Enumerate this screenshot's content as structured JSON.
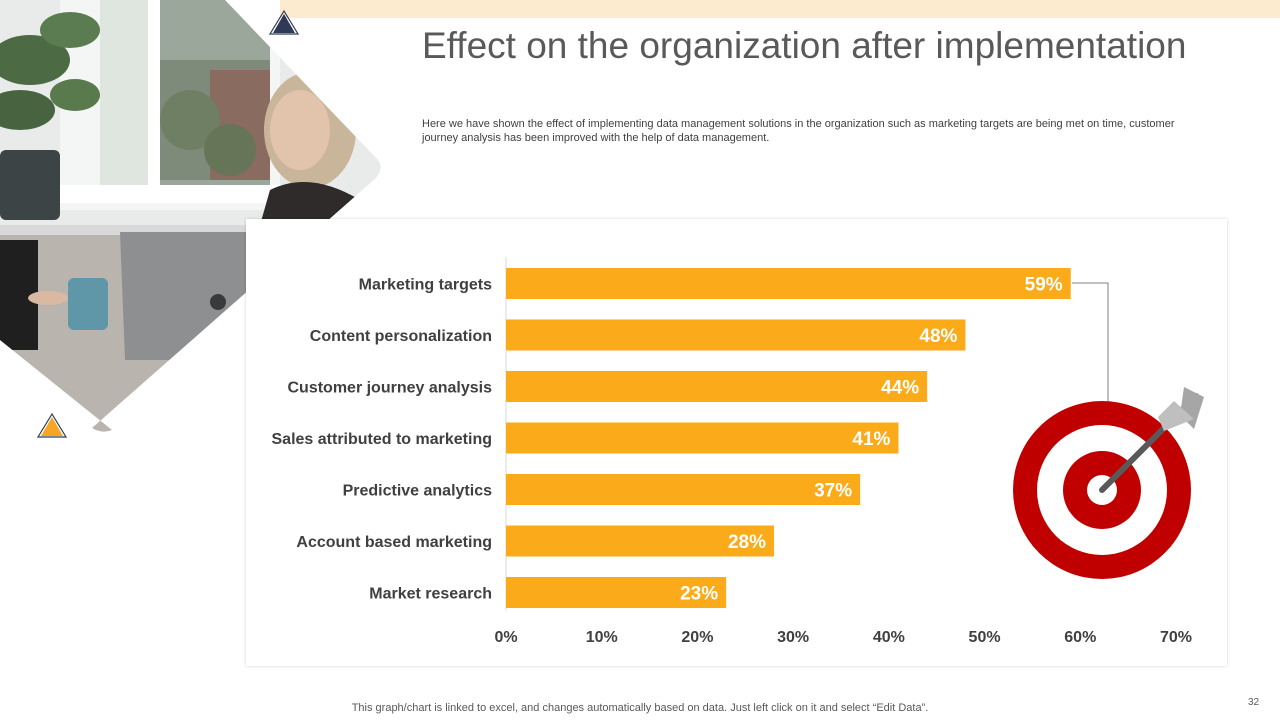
{
  "slide": {
    "title": "Effect on the organization after implementation",
    "subtitle": "Here we have shown the effect of implementing data management solutions in the organization such as marketing targets are being met on time, customer journey analysis has been improved with the help of data management.",
    "footer_note": "This graph/chart is linked to excel,  and changes automatically based on data. Just left click on it and select “Edit Data”.",
    "page_number": "32"
  },
  "colors": {
    "bar": "#fbaa19",
    "bar_label": "#ffffff",
    "target_red": "#c00000",
    "accent_navy": "#2f3a56",
    "accent_orange": "#f5a623",
    "top_band": "#fdebd0"
  },
  "chart_data": {
    "type": "bar",
    "orientation": "horizontal",
    "categories": [
      "Marketing targets",
      "Content personalization",
      "Customer journey analysis",
      "Sales attributed to marketing",
      "Predictive analytics",
      "Account based marketing",
      "Market research"
    ],
    "values": [
      59,
      48,
      44,
      41,
      37,
      28,
      23
    ],
    "value_labels": [
      "59%",
      "48%",
      "44%",
      "41%",
      "37%",
      "28%",
      "23%"
    ],
    "xlim": [
      0,
      70
    ],
    "x_ticks": [
      0,
      10,
      20,
      30,
      40,
      50,
      60,
      70
    ],
    "x_tick_labels": [
      "0%",
      "10%",
      "20%",
      "30%",
      "40%",
      "50%",
      "60%",
      "70%"
    ],
    "grid": false,
    "legend": "none"
  }
}
